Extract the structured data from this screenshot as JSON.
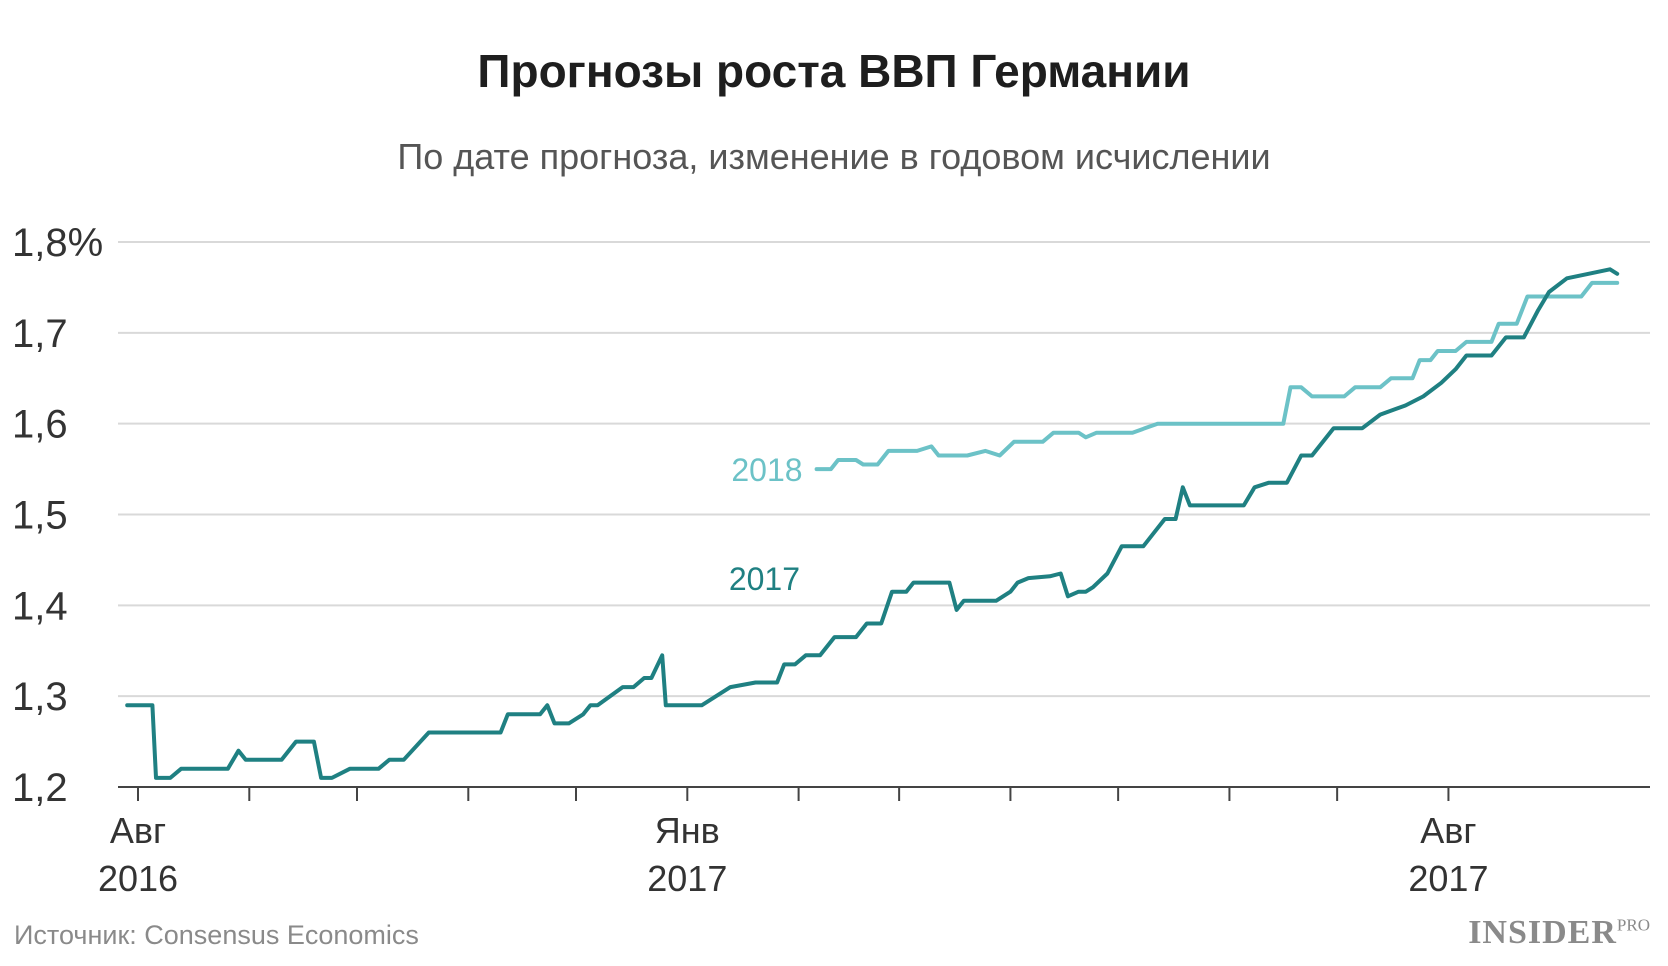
{
  "title": "Прогнозы роста ВВП Германии",
  "subtitle": "По дате прогноза, изменение в годовом исчислении",
  "source": "Источник: Consensus Economics",
  "logo": {
    "main": "INSIDER",
    "suffix": "PRO"
  },
  "colors": {
    "series_2017": "#1f8082",
    "series_2018": "#6cc2c7",
    "grid": "#d9d9d9",
    "axis": "#444444"
  },
  "chart_data": {
    "type": "line",
    "title": "Прогнозы роста ВВП Германии",
    "subtitle": "По дате прогноза, изменение в годовом исчислении",
    "xlabel": "",
    "ylabel": "",
    "ylim": [
      1.2,
      1.8
    ],
    "y_ticks": [
      1.2,
      1.3,
      1.4,
      1.5,
      1.6,
      1.7,
      1.8
    ],
    "y_tick_labels": [
      "1,2",
      "1,3",
      "1,4",
      "1,5",
      "1,6",
      "1,7",
      "1,8%"
    ],
    "x_range": [
      "2016-08-01",
      "2017-09-15"
    ],
    "x_ticks": [
      "2016-08-01",
      "2016-09-01",
      "2016-10-01",
      "2016-11-01",
      "2016-12-01",
      "2017-01-01",
      "2017-02-01",
      "2017-03-01",
      "2017-04-01",
      "2017-05-01",
      "2017-06-01",
      "2017-07-01",
      "2017-08-01"
    ],
    "x_tick_labels": [
      {
        "date": "2016-08-01",
        "line1": "Авг",
        "line2": "2016"
      },
      {
        "date": "2017-01-01",
        "line1": "Янв",
        "line2": "2017"
      },
      {
        "date": "2017-08-01",
        "line1": "Авг",
        "line2": "2017"
      }
    ],
    "grid": true,
    "series": [
      {
        "name": "2017",
        "points": [
          [
            "2016-07-29",
            1.29
          ],
          [
            "2016-08-05",
            1.29
          ],
          [
            "2016-08-06",
            1.21
          ],
          [
            "2016-08-10",
            1.21
          ],
          [
            "2016-08-13",
            1.22
          ],
          [
            "2016-08-26",
            1.22
          ],
          [
            "2016-08-29",
            1.24
          ],
          [
            "2016-08-31",
            1.23
          ],
          [
            "2016-09-10",
            1.23
          ],
          [
            "2016-09-14",
            1.25
          ],
          [
            "2016-09-19",
            1.25
          ],
          [
            "2016-09-21",
            1.21
          ],
          [
            "2016-09-24",
            1.21
          ],
          [
            "2016-09-29",
            1.22
          ],
          [
            "2016-10-07",
            1.22
          ],
          [
            "2016-10-10",
            1.23
          ],
          [
            "2016-10-14",
            1.23
          ],
          [
            "2016-10-21",
            1.26
          ],
          [
            "2016-11-09",
            1.26
          ],
          [
            "2016-11-10",
            1.26
          ],
          [
            "2016-11-12",
            1.28
          ],
          [
            "2016-11-21",
            1.28
          ],
          [
            "2016-11-23",
            1.29
          ],
          [
            "2016-11-25",
            1.27
          ],
          [
            "2016-11-29",
            1.27
          ],
          [
            "2016-12-03",
            1.28
          ],
          [
            "2016-12-05",
            1.29
          ],
          [
            "2016-12-07",
            1.29
          ],
          [
            "2016-12-14",
            1.31
          ],
          [
            "2016-12-17",
            1.31
          ],
          [
            "2016-12-20",
            1.32
          ],
          [
            "2016-12-22",
            1.32
          ],
          [
            "2016-12-25",
            1.345
          ],
          [
            "2016-12-26",
            1.29
          ],
          [
            "2017-01-05",
            1.29
          ],
          [
            "2017-01-13",
            1.31
          ],
          [
            "2017-01-20",
            1.315
          ],
          [
            "2017-01-26",
            1.315
          ],
          [
            "2017-01-28",
            1.335
          ],
          [
            "2017-01-31",
            1.335
          ],
          [
            "2017-02-03",
            1.345
          ],
          [
            "2017-02-07",
            1.345
          ],
          [
            "2017-02-11",
            1.365
          ],
          [
            "2017-02-17",
            1.365
          ],
          [
            "2017-02-20",
            1.38
          ],
          [
            "2017-02-24",
            1.38
          ],
          [
            "2017-02-27",
            1.415
          ],
          [
            "2017-03-03",
            1.415
          ],
          [
            "2017-03-05",
            1.425
          ],
          [
            "2017-03-15",
            1.425
          ],
          [
            "2017-03-17",
            1.395
          ],
          [
            "2017-03-19",
            1.405
          ],
          [
            "2017-03-28",
            1.405
          ],
          [
            "2017-04-01",
            1.415
          ],
          [
            "2017-04-03",
            1.425
          ],
          [
            "2017-04-06",
            1.43
          ],
          [
            "2017-04-12",
            1.432
          ],
          [
            "2017-04-15",
            1.435
          ],
          [
            "2017-04-17",
            1.41
          ],
          [
            "2017-04-20",
            1.415
          ],
          [
            "2017-04-22",
            1.415
          ],
          [
            "2017-04-24",
            1.42
          ],
          [
            "2017-04-28",
            1.435
          ],
          [
            "2017-05-02",
            1.465
          ],
          [
            "2017-05-08",
            1.465
          ],
          [
            "2017-05-11",
            1.48
          ],
          [
            "2017-05-14",
            1.495
          ],
          [
            "2017-05-17",
            1.495
          ],
          [
            "2017-05-19",
            1.53
          ],
          [
            "2017-05-21",
            1.51
          ],
          [
            "2017-06-01",
            1.51
          ],
          [
            "2017-06-05",
            1.51
          ],
          [
            "2017-06-08",
            1.53
          ],
          [
            "2017-06-12",
            1.535
          ],
          [
            "2017-06-17",
            1.535
          ],
          [
            "2017-06-21",
            1.565
          ],
          [
            "2017-06-24",
            1.565
          ],
          [
            "2017-06-30",
            1.595
          ],
          [
            "2017-07-08",
            1.595
          ],
          [
            "2017-07-13",
            1.61
          ],
          [
            "2017-07-20",
            1.62
          ],
          [
            "2017-07-25",
            1.63
          ],
          [
            "2017-07-30",
            1.645
          ],
          [
            "2017-08-03",
            1.66
          ],
          [
            "2017-08-06",
            1.675
          ],
          [
            "2017-08-13",
            1.675
          ],
          [
            "2017-08-17",
            1.695
          ],
          [
            "2017-08-22",
            1.695
          ],
          [
            "2017-08-26",
            1.725
          ],
          [
            "2017-08-29",
            1.745
          ],
          [
            "2017-09-03",
            1.76
          ],
          [
            "2017-09-09",
            1.765
          ],
          [
            "2017-09-15",
            1.77
          ],
          [
            "2017-09-17",
            1.765
          ]
        ]
      },
      {
        "name": "2018",
        "points": [
          [
            "2017-02-06",
            1.55
          ],
          [
            "2017-02-10",
            1.55
          ],
          [
            "2017-02-12",
            1.56
          ],
          [
            "2017-02-17",
            1.56
          ],
          [
            "2017-02-19",
            1.555
          ],
          [
            "2017-02-23",
            1.555
          ],
          [
            "2017-02-26",
            1.57
          ],
          [
            "2017-03-06",
            1.57
          ],
          [
            "2017-03-10",
            1.575
          ],
          [
            "2017-03-12",
            1.565
          ],
          [
            "2017-03-20",
            1.565
          ],
          [
            "2017-03-25",
            1.57
          ],
          [
            "2017-03-29",
            1.565
          ],
          [
            "2017-04-02",
            1.58
          ],
          [
            "2017-04-10",
            1.58
          ],
          [
            "2017-04-13",
            1.59
          ],
          [
            "2017-04-20",
            1.59
          ],
          [
            "2017-04-22",
            1.585
          ],
          [
            "2017-04-25",
            1.59
          ],
          [
            "2017-05-05",
            1.59
          ],
          [
            "2017-05-12",
            1.6
          ],
          [
            "2017-05-28",
            1.6
          ],
          [
            "2017-06-01",
            1.6
          ],
          [
            "2017-06-16",
            1.6
          ],
          [
            "2017-06-18",
            1.64
          ],
          [
            "2017-06-21",
            1.64
          ],
          [
            "2017-06-24",
            1.63
          ],
          [
            "2017-07-03",
            1.63
          ],
          [
            "2017-07-06",
            1.64
          ],
          [
            "2017-07-13",
            1.64
          ],
          [
            "2017-07-16",
            1.65
          ],
          [
            "2017-07-22",
            1.65
          ],
          [
            "2017-07-24",
            1.67
          ],
          [
            "2017-07-27",
            1.67
          ],
          [
            "2017-07-29",
            1.68
          ],
          [
            "2017-08-03",
            1.68
          ],
          [
            "2017-08-06",
            1.69
          ],
          [
            "2017-08-13",
            1.69
          ],
          [
            "2017-08-15",
            1.71
          ],
          [
            "2017-08-20",
            1.71
          ],
          [
            "2017-08-23",
            1.74
          ],
          [
            "2017-08-26",
            1.74
          ],
          [
            "2017-08-29",
            1.74
          ],
          [
            "2017-09-07",
            1.74
          ],
          [
            "2017-09-10",
            1.755
          ],
          [
            "2017-09-17",
            1.755
          ]
        ]
      }
    ]
  }
}
